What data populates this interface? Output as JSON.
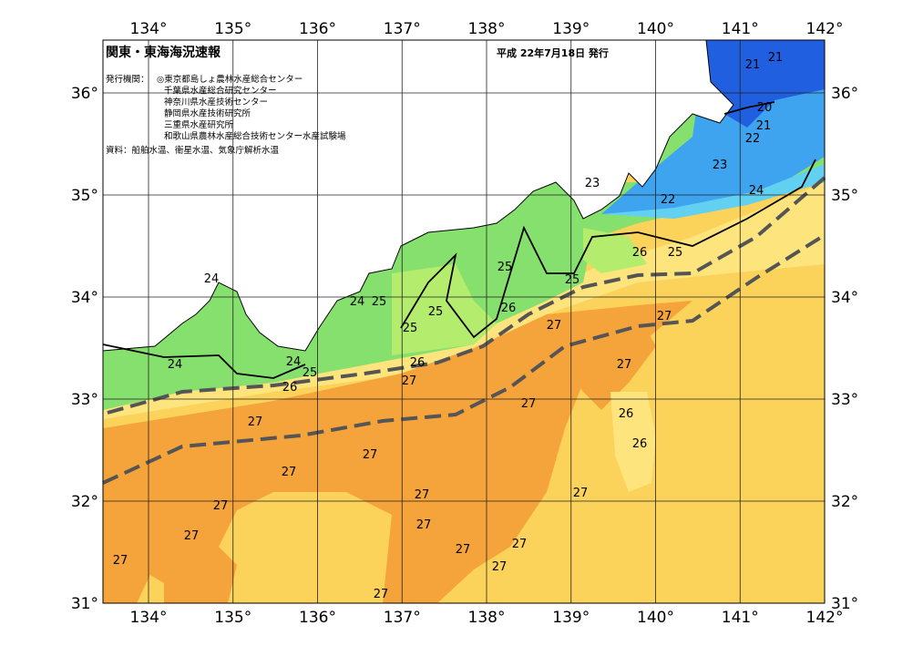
{
  "header": {
    "title": "関東・東海海況速報",
    "date": "平成 22年7月18日 発行"
  },
  "publishers": {
    "label": "発行機関：",
    "agencies": [
      "◎東京都島しょ農林水産総合センター",
      "千葉県水産総合研究センター",
      "神奈川県水産技術センター",
      "静岡県水産技術研究所",
      "三重県水産研究所",
      "和歌山県農林水産総合技術センター水産試験場"
    ]
  },
  "source": "資料：船舶水温、衛星水温、気象庁解析水温",
  "longitude_labels": [
    "134°",
    "135°",
    "136°",
    "137°",
    "138°",
    "139°",
    "140°",
    "141°",
    "142°"
  ],
  "latitude_labels": [
    "36°",
    "35°",
    "34°",
    "33°",
    "32°",
    "31°"
  ],
  "contour_labels": [
    21,
    21,
    20,
    21,
    22,
    23,
    24,
    22,
    23,
    26,
    25,
    25,
    25,
    24,
    24,
    25,
    26,
    25,
    25,
    27,
    27,
    24,
    24,
    25,
    26,
    27,
    26,
    27,
    27,
    27,
    26,
    26,
    27,
    27,
    27,
    27,
    27,
    27,
    27,
    27,
    27,
    27,
    27,
    27
  ]
}
